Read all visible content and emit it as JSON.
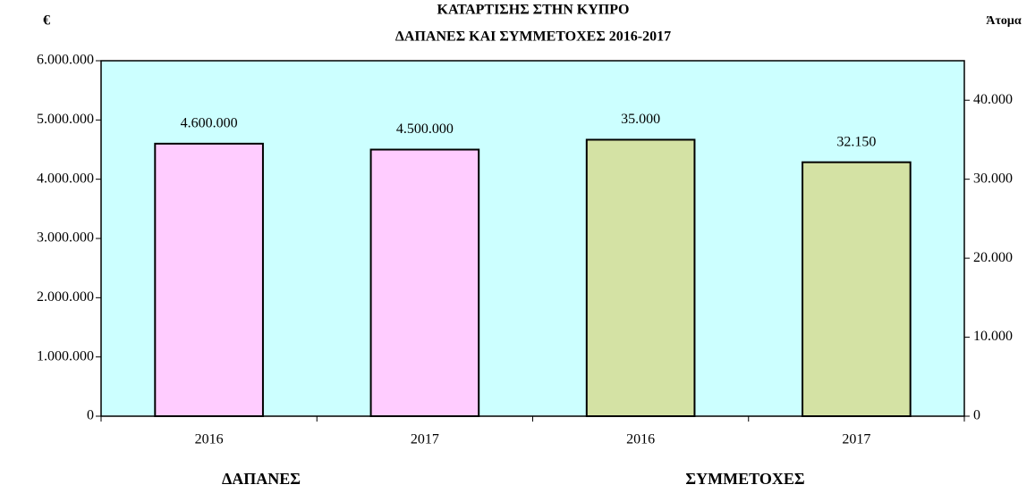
{
  "chart_data": {
    "type": "bar",
    "title": "ΚΑΤΑΡΤΙΣΗΣ ΣΤΗΝ ΚΥΠΡΟ",
    "subtitle": "ΔΑΠΑΝΕΣ ΚΑΙ ΣΥΜΜΕΤΟΧΕΣ 2016-2017",
    "ylabel": "€",
    "y2label": "Άτομα",
    "categories": [
      "2016",
      "2017",
      "2016",
      "2017"
    ],
    "series": [
      {
        "name": "ΔΑΠΑΝΕΣ",
        "color": "#ffccff",
        "values": [
          4600000,
          4500000,
          null,
          null
        ],
        "value_labels": [
          "4.600.000",
          "4.500.000",
          null,
          null
        ]
      },
      {
        "name": "ΣΥΜΜΕΤΟΧΕΣ",
        "color": "#d4e2a4",
        "axis": "y2",
        "values": [
          null,
          null,
          35000,
          32150
        ],
        "value_labels": [
          null,
          null,
          "35.000",
          "32.150"
        ]
      }
    ],
    "ylim": [
      0,
      6000000
    ],
    "yticks": [
      0,
      {
        "value": 1000000,
        "label": "1.000.000"
      },
      {
        "value": 2000000,
        "label": "2.000.000"
      },
      {
        "value": 3000000,
        "label": "3.000.000"
      },
      {
        "value": 4000000,
        "label": "4.000.000"
      },
      {
        "value": 5000000,
        "label": "5.000.000"
      },
      {
        "value": 6000000,
        "label": "6.000.000"
      }
    ],
    "y2lim": [
      0,
      45000
    ],
    "y2ticks": [
      0,
      {
        "value": 10000,
        "label": "10.000"
      },
      {
        "value": 20000,
        "label": "20.000"
      },
      {
        "value": 30000,
        "label": "30.000"
      },
      {
        "value": 40000,
        "label": "40.000"
      }
    ],
    "background": "#ccffff"
  }
}
